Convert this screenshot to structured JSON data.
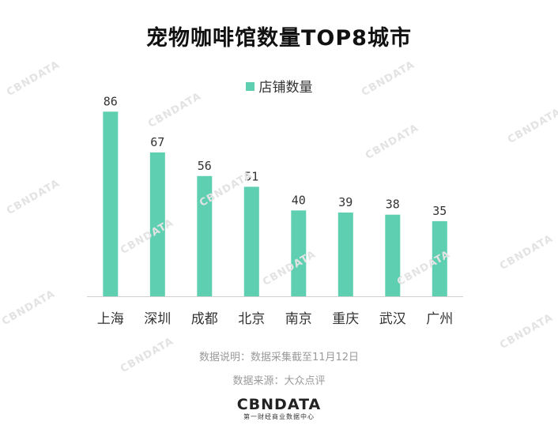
{
  "title": "宠物咖啡馆数量TOP8城市",
  "chart_data": {
    "type": "bar",
    "categories": [
      "上海",
      "深圳",
      "成都",
      "北京",
      "南京",
      "重庆",
      "武汉",
      "广州"
    ],
    "series": [
      {
        "name": "店铺数量",
        "values": [
          86,
          67,
          56,
          51,
          40,
          39,
          38,
          35
        ]
      }
    ],
    "ylim": [
      0,
      92
    ],
    "grid": false,
    "legend_placement": "top-center",
    "bar_color": "#5ecfb1"
  },
  "notes": {
    "explanation": "数据说明：数据采集截至11月12日",
    "source": "数据来源：大众点评"
  },
  "logo": {
    "name": "CBNDATA",
    "subtitle": "第一财经商业数据中心"
  },
  "watermark": "CBNDATA"
}
